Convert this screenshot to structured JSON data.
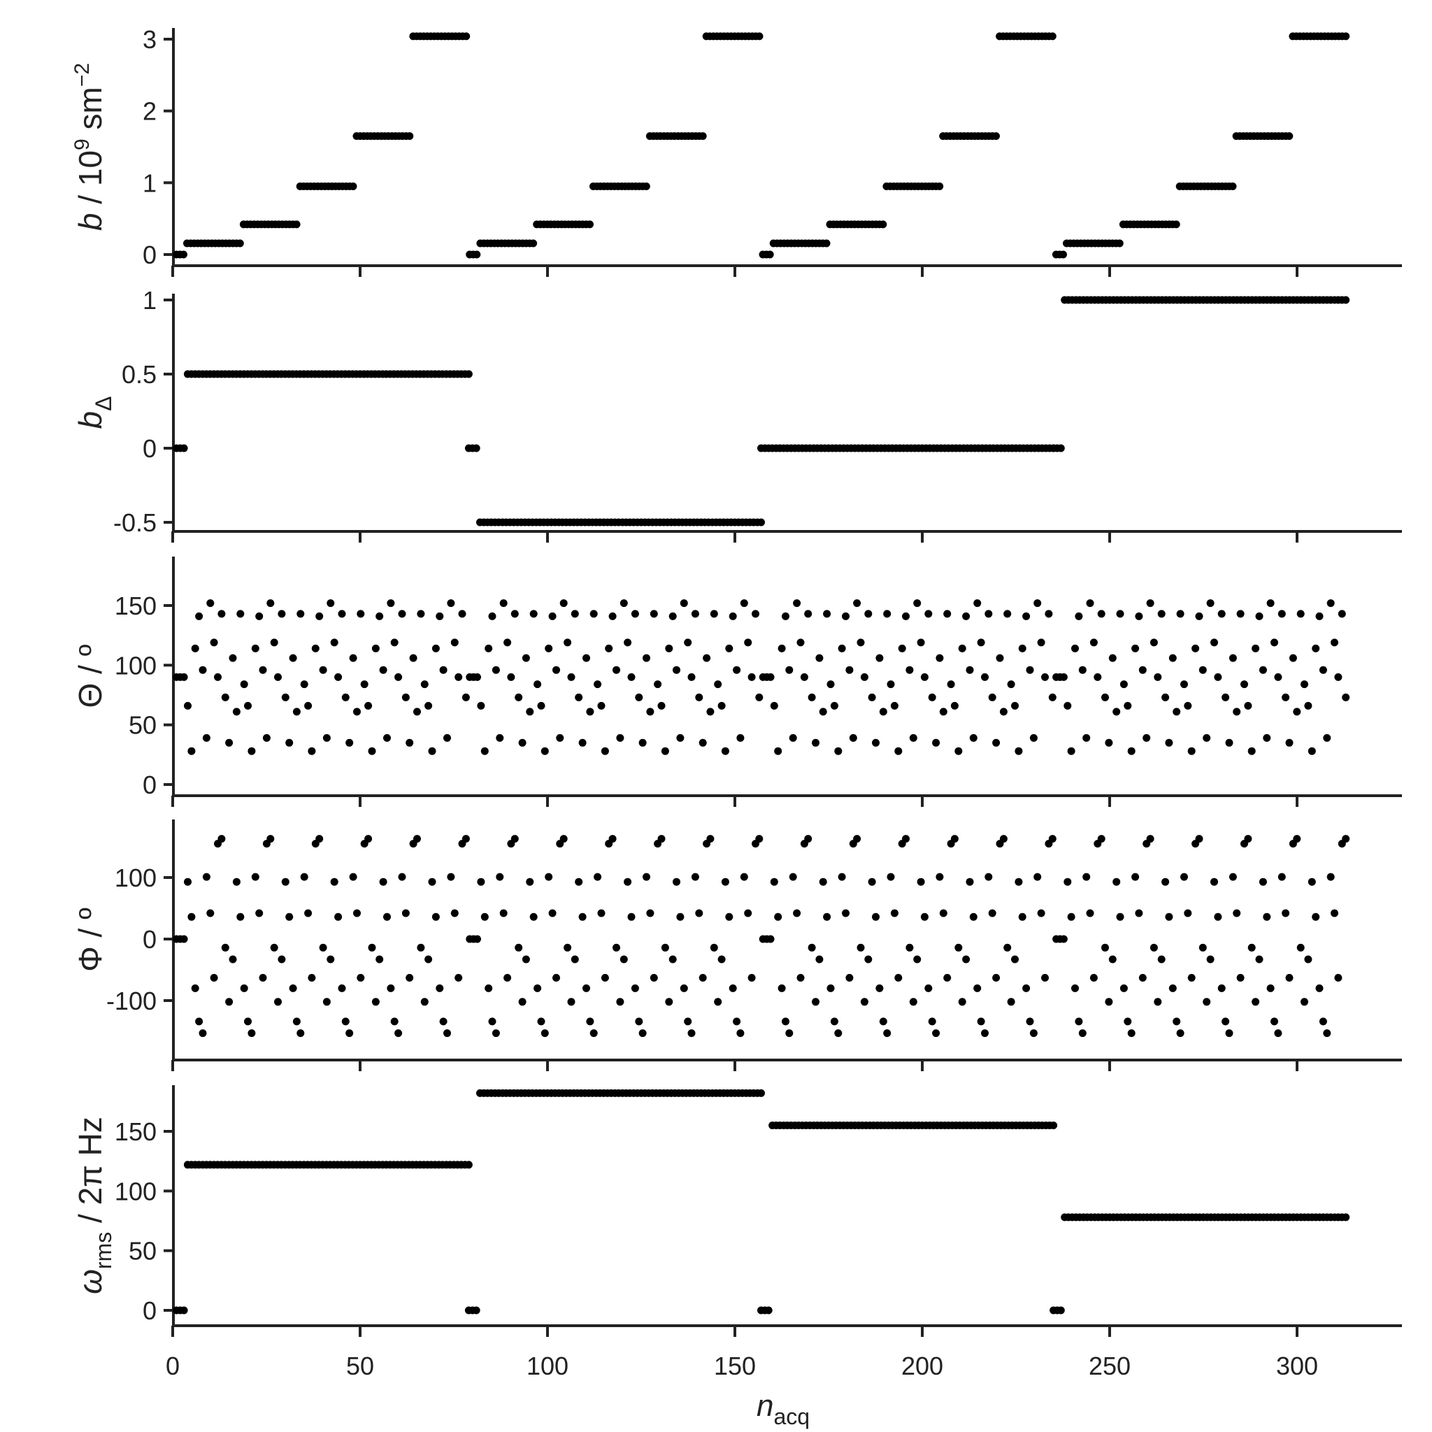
{
  "xaxis": {
    "label_main": "n",
    "label_sub": "acq",
    "ticks": [
      0,
      50,
      100,
      150,
      200,
      250,
      300
    ],
    "tick_labels": [
      "0",
      "50",
      "100",
      "150",
      "200",
      "250",
      "300"
    ],
    "range": [
      -16,
      330
    ]
  },
  "chart_data": [
    {
      "type": "scatter",
      "title": "",
      "ylabel": "b / 10^9 sm^-2",
      "ylim": [
        -0.15,
        3.2
      ],
      "yticks": [
        0,
        1,
        2,
        3
      ],
      "ytick_labels": [
        "0",
        "1",
        "2",
        "3"
      ],
      "series": [
        {
          "values_per_block": [
            0,
            0,
            0,
            0.156,
            0.156,
            0.156,
            0.156,
            0.156,
            0.156,
            0.156,
            0.156,
            0.156,
            0.156,
            0.156,
            0.156,
            0.156,
            0.156,
            0.156,
            0.156,
            0.42,
            0.42,
            0.42,
            0.42,
            0.42,
            0.42,
            0.42,
            0.42,
            0.42,
            0.42,
            0.42,
            0.42,
            0.42,
            0.42,
            0.42,
            0.42,
            0.95,
            0.95,
            0.95,
            0.95,
            0.95,
            0.95,
            0.95,
            0.95,
            0.95,
            0.95,
            0.95,
            0.95,
            0.95,
            0.95,
            0.95,
            0.95,
            1.65,
            1.65,
            1.65,
            1.65,
            1.65,
            1.65,
            1.65,
            1.65,
            1.65,
            1.65,
            1.65,
            1.65,
            1.65,
            1.65,
            1.65,
            1.65,
            3.04,
            3.04,
            3.04,
            3.04,
            3.04,
            3.04,
            3.04,
            3.04,
            3.04,
            3.04,
            3.04,
            3.04,
            3.04,
            3.04,
            3.04,
            3.04
          ],
          "blocks": 4,
          "x_start": 1
        }
      ]
    },
    {
      "type": "scatter",
      "title": "",
      "ylabel": "b_Δ",
      "ylim": [
        -0.58,
        1.07
      ],
      "yticks": [
        -0.5,
        0,
        0.5,
        1
      ],
      "ytick_labels": [
        "-0.5",
        "0",
        "0.5",
        "1"
      ],
      "series": [
        {
          "segments": [
            {
              "x_from": 1,
              "x_to": 3,
              "value": 0
            },
            {
              "x_from": 4,
              "x_to": 79,
              "value": 0.5
            },
            {
              "x_from": 79,
              "x_to": 81,
              "value": 0
            },
            {
              "x_from": 82,
              "x_to": 157,
              "value": -0.5
            },
            {
              "x_from": 157,
              "x_to": 159,
              "value": 0
            },
            {
              "x_from": 160,
              "x_to": 235,
              "value": 0
            },
            {
              "x_from": 235,
              "x_to": 237,
              "value": 0
            },
            {
              "x_from": 238,
              "x_to": 313,
              "value": 1
            }
          ]
        }
      ]
    },
    {
      "type": "scatter",
      "title": "",
      "ylabel": "Θ / º",
      "ylim": [
        -7,
        187
      ],
      "yticks": [
        0,
        50,
        100,
        150
      ],
      "ytick_labels": [
        "0",
        "50",
        "100",
        "150"
      ],
      "series": [
        {
          "b0_value": 90,
          "b0_points_per_block": 3,
          "pattern": [
            66,
            28,
            114,
            141,
            96,
            39,
            152,
            119,
            90,
            143,
            73,
            35,
            106,
            61,
            143,
            84
          ],
          "blocks": 4,
          "x_start": 1
        }
      ]
    },
    {
      "type": "scatter",
      "title": "",
      "ylabel": "Φ / º",
      "ylim": [
        -193,
        193
      ],
      "yticks": [
        -100,
        0,
        100
      ],
      "ytick_labels": [
        "-100",
        "0",
        "100"
      ],
      "series": [
        {
          "b0_value": 0,
          "b0_points_per_block": 3,
          "pattern": [
            93,
            36,
            -80,
            -134,
            -153,
            101,
            42,
            -63,
            155,
            163,
            -14,
            -102,
            -33
          ],
          "blocks": 4,
          "x_start": 1
        }
      ]
    },
    {
      "type": "scatter",
      "title": "",
      "ylabel": "ω_rms / 2π Hz",
      "ylim": [
        -9,
        192
      ],
      "yticks": [
        0,
        50,
        100,
        150
      ],
      "ytick_labels": [
        "0",
        "50",
        "100",
        "150"
      ],
      "series": [
        {
          "segments": [
            {
              "x_from": 1,
              "x_to": 3,
              "value": 0
            },
            {
              "x_from": 4,
              "x_to": 79,
              "value": 122
            },
            {
              "x_from": 79,
              "x_to": 81,
              "value": 0
            },
            {
              "x_from": 82,
              "x_to": 157,
              "value": 182
            },
            {
              "x_from": 157,
              "x_to": 159,
              "value": 0
            },
            {
              "x_from": 160,
              "x_to": 235,
              "value": 155
            },
            {
              "x_from": 235,
              "x_to": 237,
              "value": 0
            },
            {
              "x_from": 238,
              "x_to": 313,
              "value": 78
            }
          ]
        }
      ]
    }
  ]
}
